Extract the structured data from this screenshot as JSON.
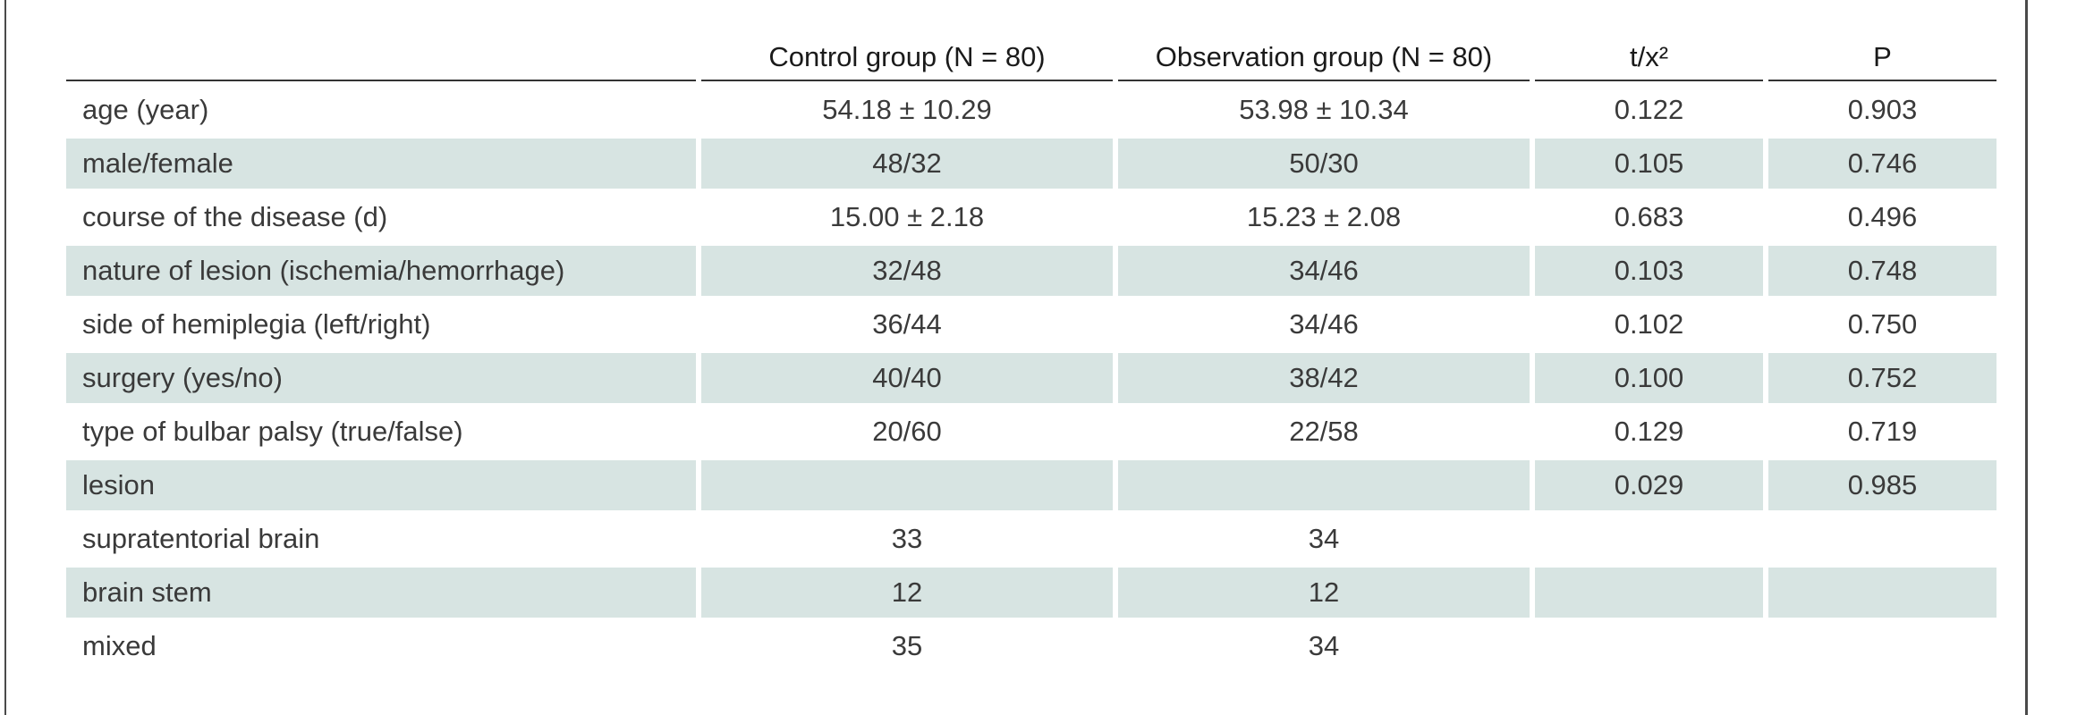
{
  "table": {
    "headers": [
      "",
      "Control group (N = 80)",
      "Observation group (N = 80)",
      "t/x²",
      "P"
    ],
    "rows": [
      {
        "label": "age (year)",
        "control": "54.18 ± 10.29",
        "observation": "53.98 ± 10.34",
        "t": "0.122",
        "p": "0.903",
        "shaded": false
      },
      {
        "label": "male/female",
        "control": "48/32",
        "observation": "50/30",
        "t": "0.105",
        "p": "0.746",
        "shaded": true
      },
      {
        "label": "course of the disease (d)",
        "control": "15.00 ± 2.18",
        "observation": "15.23 ± 2.08",
        "t": "0.683",
        "p": "0.496",
        "shaded": false
      },
      {
        "label": "nature of lesion (ischemia/hemorrhage)",
        "control": "32/48",
        "observation": "34/46",
        "t": "0.103",
        "p": "0.748",
        "shaded": true
      },
      {
        "label": "side of hemiplegia (left/right)",
        "control": "36/44",
        "observation": "34/46",
        "t": "0.102",
        "p": "0.750",
        "shaded": false
      },
      {
        "label": "surgery (yes/no)",
        "control": "40/40",
        "observation": "38/42",
        "t": "0.100",
        "p": "0.752",
        "shaded": true
      },
      {
        "label": "type of bulbar palsy (true/false)",
        "control": "20/60",
        "observation": "22/58",
        "t": "0.129",
        "p": "0.719",
        "shaded": false
      },
      {
        "label": "lesion",
        "control": "",
        "observation": "",
        "t": "0.029",
        "p": "0.985",
        "shaded": true
      },
      {
        "label": "supratentorial brain",
        "control": "33",
        "observation": "34",
        "t": "",
        "p": "",
        "shaded": false
      },
      {
        "label": "brain stem",
        "control": "12",
        "observation": "12",
        "t": "",
        "p": "",
        "shaded": true
      },
      {
        "label": "mixed",
        "control": "35",
        "observation": "34",
        "t": "",
        "p": "",
        "shaded": false
      }
    ]
  }
}
